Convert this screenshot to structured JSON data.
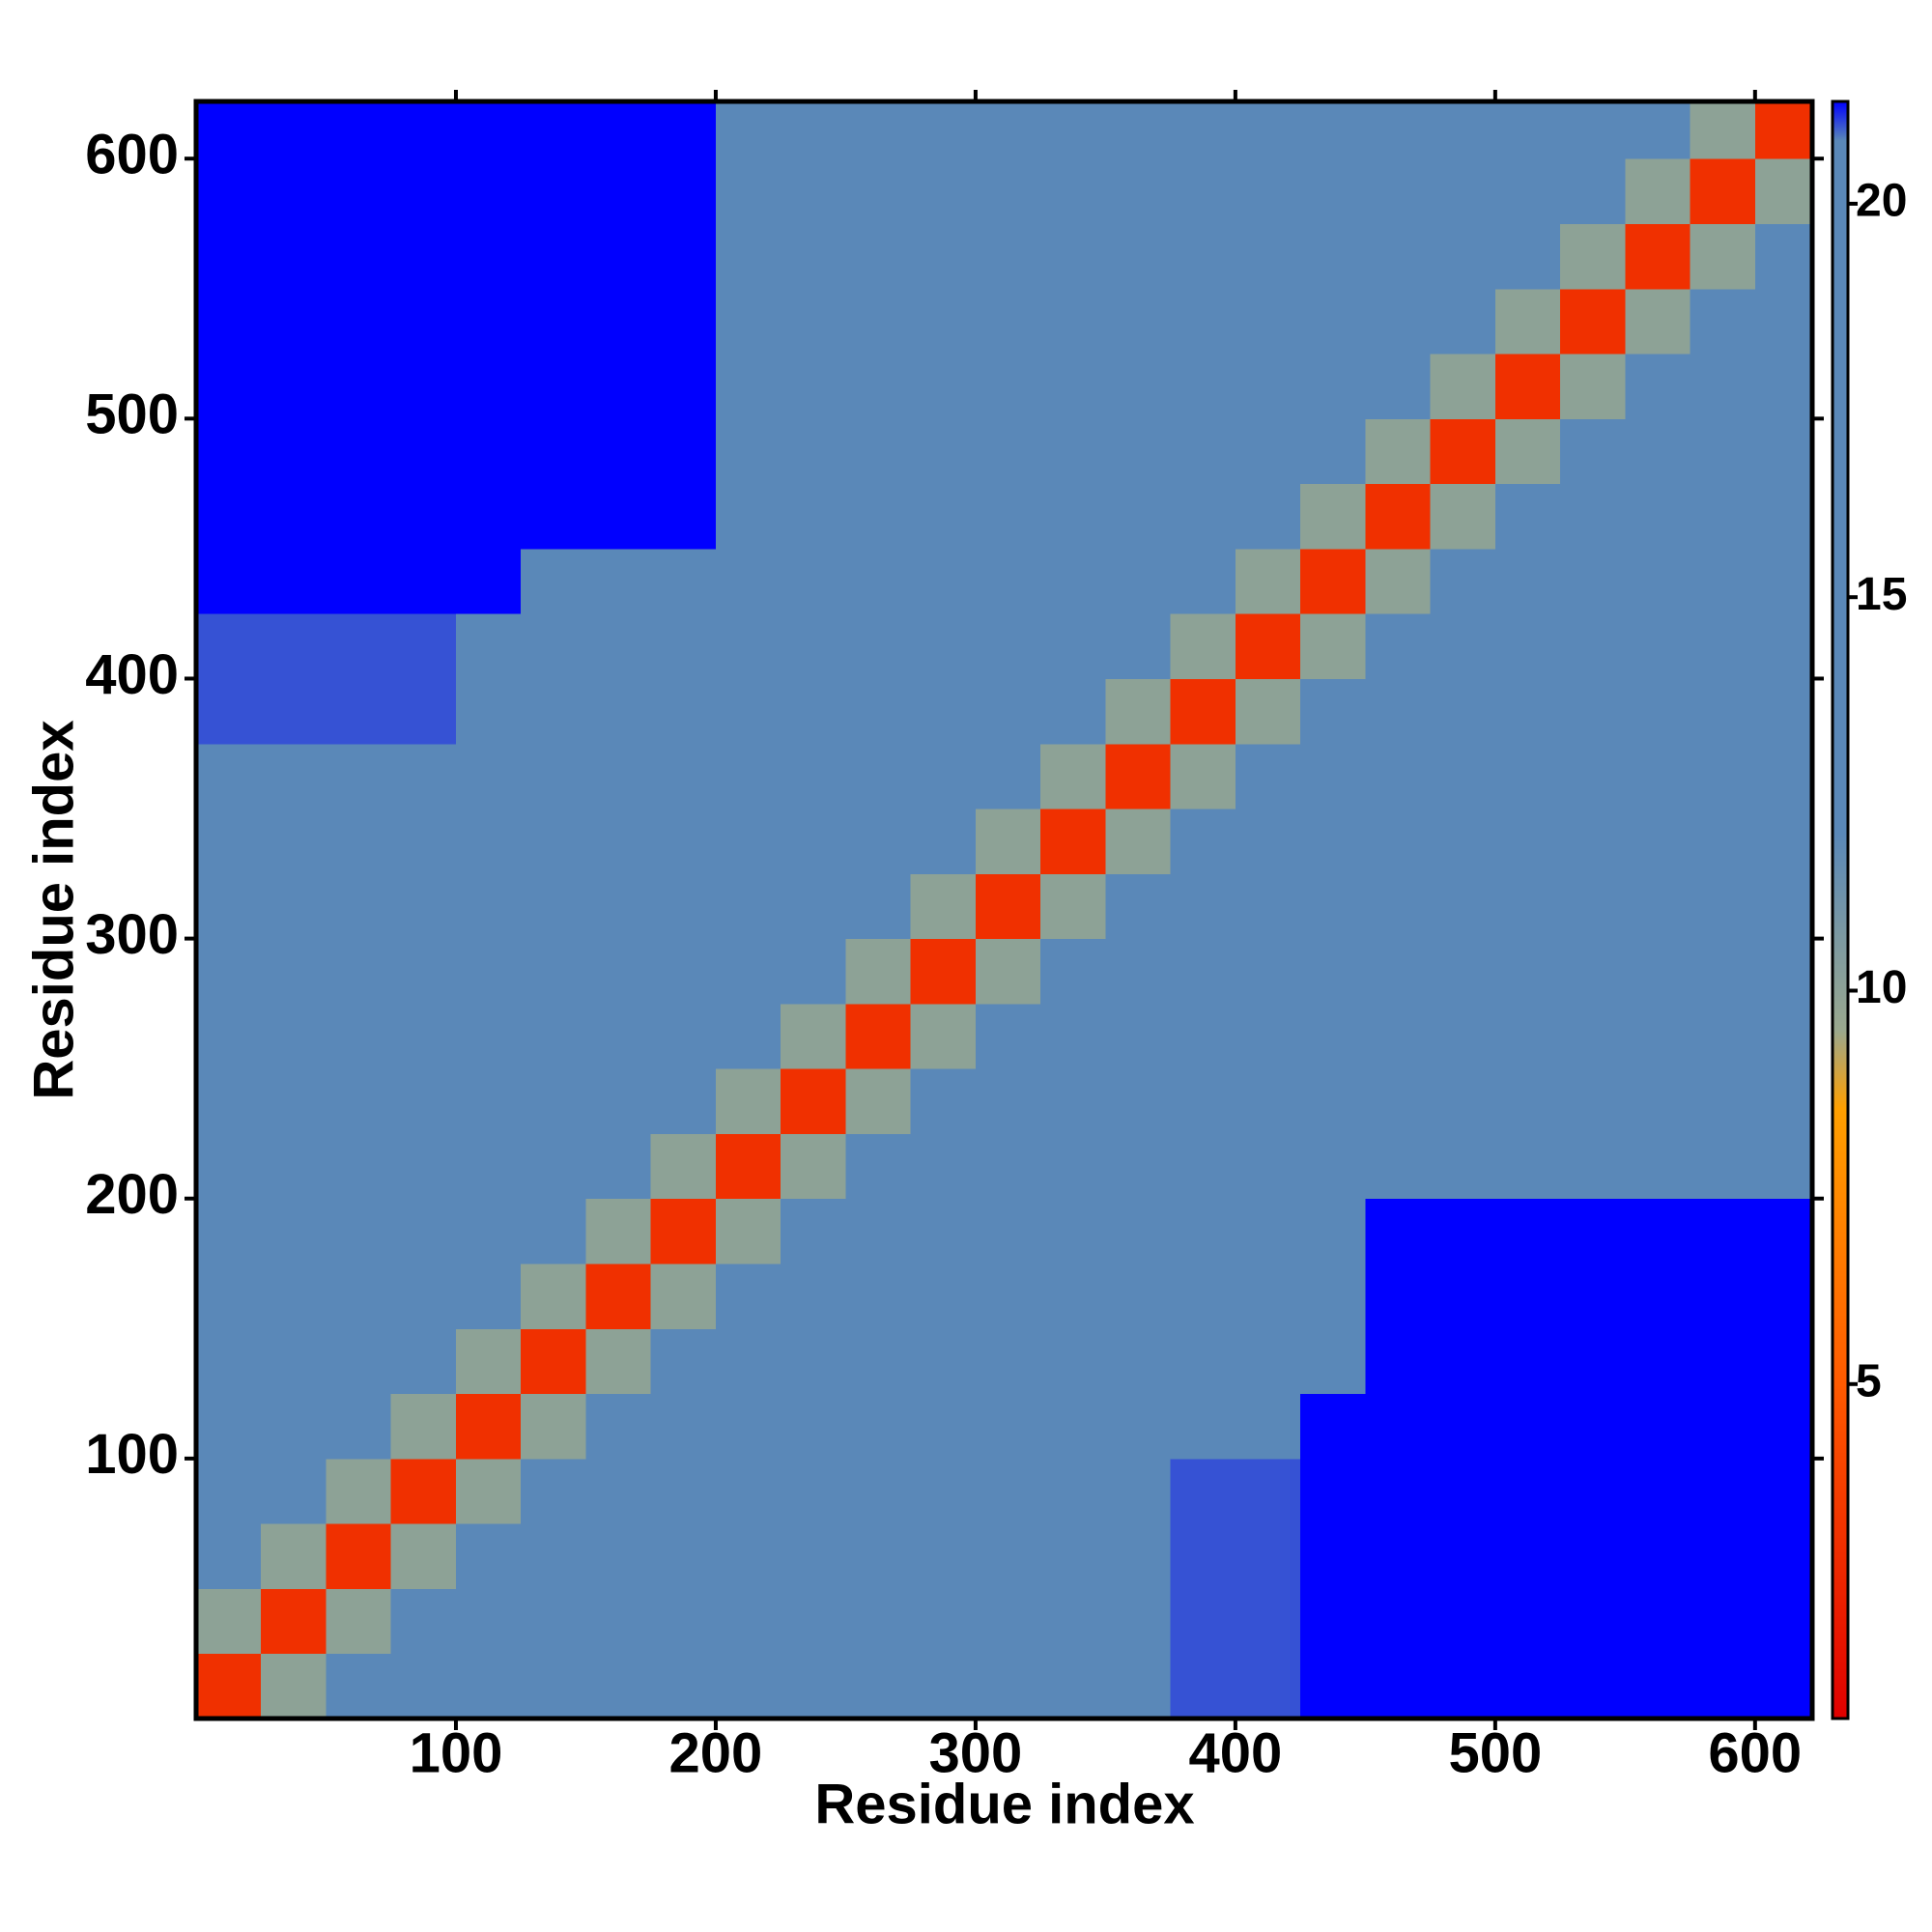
{
  "chart_data": {
    "type": "heatmap",
    "xlabel": "Residue index",
    "ylabel": "Residue index",
    "x_edges": [
      0,
      25,
      50,
      75,
      100,
      125,
      150,
      175,
      200,
      225,
      250,
      275,
      300,
      325,
      350,
      375,
      400,
      425,
      450,
      475,
      500,
      525,
      550,
      575,
      600,
      625
    ],
    "y_edges": [
      0,
      25,
      50,
      75,
      100,
      125,
      150,
      175,
      200,
      225,
      250,
      275,
      300,
      325,
      350,
      375,
      400,
      425,
      450,
      475,
      500,
      525,
      550,
      575,
      600,
      625
    ],
    "xlim": [
      0,
      622
    ],
    "ylim": [
      0,
      622
    ],
    "xticks": [
      100,
      200,
      300,
      400,
      500,
      600
    ],
    "yticks": [
      100,
      200,
      300,
      400,
      500,
      600
    ],
    "zlim": [
      0.75,
      21.3
    ],
    "zticks": [
      5,
      10,
      15,
      20
    ],
    "colorscale": [
      [
        0.75,
        "#e00000"
      ],
      [
        5,
        "#ff5a00"
      ],
      [
        8.5,
        "#ffa000"
      ],
      [
        9.5,
        "#9aa88e"
      ],
      [
        12,
        "#5a88b8"
      ],
      [
        20.8,
        "#5a88b8"
      ],
      [
        21.3,
        "#0000ff"
      ]
    ],
    "z": [
      [
        3,
        10,
        13,
        17,
        17,
        17,
        17,
        17,
        17,
        17,
        17,
        17,
        17,
        17,
        17,
        21,
        21,
        22,
        22,
        22,
        22,
        22,
        22,
        22,
        22
      ],
      [
        10,
        3,
        10,
        13,
        17,
        17,
        17,
        17,
        17,
        17,
        17,
        17,
        17,
        17,
        17,
        21,
        21,
        22,
        22,
        22,
        22,
        22,
        22,
        22,
        22
      ],
      [
        13,
        10,
        3,
        10,
        13,
        17,
        17,
        17,
        17,
        17,
        17,
        17,
        17,
        17,
        17,
        21,
        21,
        22,
        22,
        22,
        22,
        22,
        22,
        22,
        22
      ],
      [
        17,
        13,
        10,
        3,
        10,
        13,
        17,
        17,
        17,
        17,
        17,
        17,
        17,
        17,
        17,
        21,
        21,
        22,
        22,
        22,
        22,
        22,
        22,
        22,
        22
      ],
      [
        17,
        17,
        13,
        10,
        3,
        10,
        13,
        17,
        17,
        17,
        17,
        17,
        17,
        17,
        17,
        17,
        17,
        22,
        22,
        22,
        22,
        22,
        22,
        22,
        22
      ],
      [
        17,
        17,
        17,
        13,
        10,
        3,
        10,
        13,
        17,
        17,
        17,
        17,
        17,
        17,
        17,
        17,
        17,
        17,
        22,
        22,
        22,
        22,
        22,
        22,
        22
      ],
      [
        17,
        17,
        17,
        17,
        13,
        10,
        3,
        10,
        13,
        17,
        17,
        17,
        17,
        17,
        17,
        17,
        17,
        17,
        22,
        22,
        22,
        22,
        22,
        22,
        22
      ],
      [
        17,
        17,
        17,
        17,
        17,
        13,
        10,
        3,
        10,
        13,
        17,
        17,
        17,
        17,
        17,
        17,
        17,
        17,
        22,
        22,
        22,
        22,
        22,
        22,
        22
      ],
      [
        17,
        17,
        17,
        17,
        17,
        17,
        13,
        10,
        3,
        10,
        13,
        17,
        17,
        17,
        17,
        17,
        17,
        17,
        20,
        20,
        20,
        20,
        20,
        20,
        20
      ],
      [
        17,
        17,
        17,
        17,
        17,
        17,
        17,
        13,
        10,
        3,
        10,
        13,
        17,
        17,
        17,
        17,
        17,
        17,
        20,
        20,
        20,
        20,
        20,
        20,
        20
      ],
      [
        17,
        17,
        17,
        17,
        17,
        17,
        17,
        17,
        13,
        10,
        3,
        10,
        13,
        17,
        17,
        17,
        17,
        17,
        17,
        17,
        17,
        17,
        17,
        17,
        17
      ],
      [
        17,
        17,
        17,
        17,
        17,
        17,
        17,
        17,
        17,
        13,
        10,
        3,
        10,
        13,
        17,
        17,
        17,
        17,
        17,
        17,
        17,
        17,
        17,
        17,
        17
      ],
      [
        17,
        17,
        17,
        17,
        17,
        17,
        17,
        17,
        17,
        17,
        13,
        10,
        3,
        10,
        13,
        17,
        17,
        17,
        17,
        17,
        17,
        17,
        17,
        17,
        17
      ],
      [
        17,
        17,
        17,
        17,
        17,
        17,
        17,
        17,
        17,
        17,
        17,
        13,
        10,
        3,
        10,
        13,
        17,
        17,
        17,
        17,
        17,
        17,
        17,
        17,
        17
      ],
      [
        17,
        17,
        17,
        17,
        17,
        17,
        17,
        17,
        17,
        17,
        17,
        17,
        13,
        10,
        3,
        10,
        13,
        17,
        17,
        17,
        17,
        17,
        17,
        17,
        17
      ],
      [
        21,
        21,
        21,
        21,
        17,
        17,
        17,
        17,
        17,
        17,
        17,
        17,
        17,
        13,
        10,
        3,
        10,
        13,
        17,
        17,
        17,
        17,
        17,
        17,
        17
      ],
      [
        21,
        21,
        21,
        21,
        17,
        17,
        17,
        17,
        17,
        17,
        17,
        17,
        17,
        17,
        13,
        10,
        3,
        10,
        13,
        17,
        17,
        17,
        17,
        17,
        17
      ],
      [
        22,
        22,
        22,
        22,
        22,
        17,
        17,
        17,
        17,
        17,
        17,
        17,
        17,
        17,
        17,
        13,
        10,
        3,
        10,
        13,
        15,
        15,
        15,
        15,
        15
      ],
      [
        22,
        22,
        22,
        22,
        22,
        22,
        22,
        22,
        20,
        20,
        17,
        17,
        17,
        17,
        17,
        17,
        13,
        10,
        3,
        10,
        13,
        15,
        15,
        15,
        15
      ],
      [
        22,
        22,
        22,
        22,
        22,
        22,
        22,
        22,
        20,
        20,
        17,
        17,
        17,
        17,
        17,
        17,
        17,
        13,
        10,
        3,
        10,
        13,
        15,
        15,
        15
      ],
      [
        22,
        22,
        22,
        22,
        22,
        22,
        22,
        22,
        20,
        20,
        17,
        17,
        17,
        17,
        17,
        17,
        17,
        15,
        13,
        10,
        3,
        10,
        13,
        15,
        15
      ],
      [
        22,
        22,
        22,
        22,
        22,
        22,
        22,
        22,
        20,
        20,
        17,
        17,
        17,
        17,
        17,
        17,
        17,
        15,
        15,
        13,
        10,
        3,
        10,
        13,
        15
      ],
      [
        22,
        22,
        22,
        22,
        22,
        22,
        22,
        22,
        20,
        20,
        17,
        17,
        17,
        17,
        17,
        17,
        17,
        15,
        15,
        15,
        13,
        10,
        3,
        10,
        13
      ],
      [
        22,
        22,
        22,
        22,
        22,
        22,
        22,
        22,
        20,
        20,
        17,
        17,
        17,
        17,
        17,
        17,
        17,
        15,
        15,
        15,
        15,
        13,
        10,
        3,
        10
      ],
      [
        22,
        22,
        22,
        22,
        22,
        22,
        22,
        22,
        20,
        20,
        17,
        17,
        17,
        17,
        17,
        17,
        17,
        15,
        15,
        15,
        15,
        15,
        13,
        10,
        3
      ]
    ]
  }
}
